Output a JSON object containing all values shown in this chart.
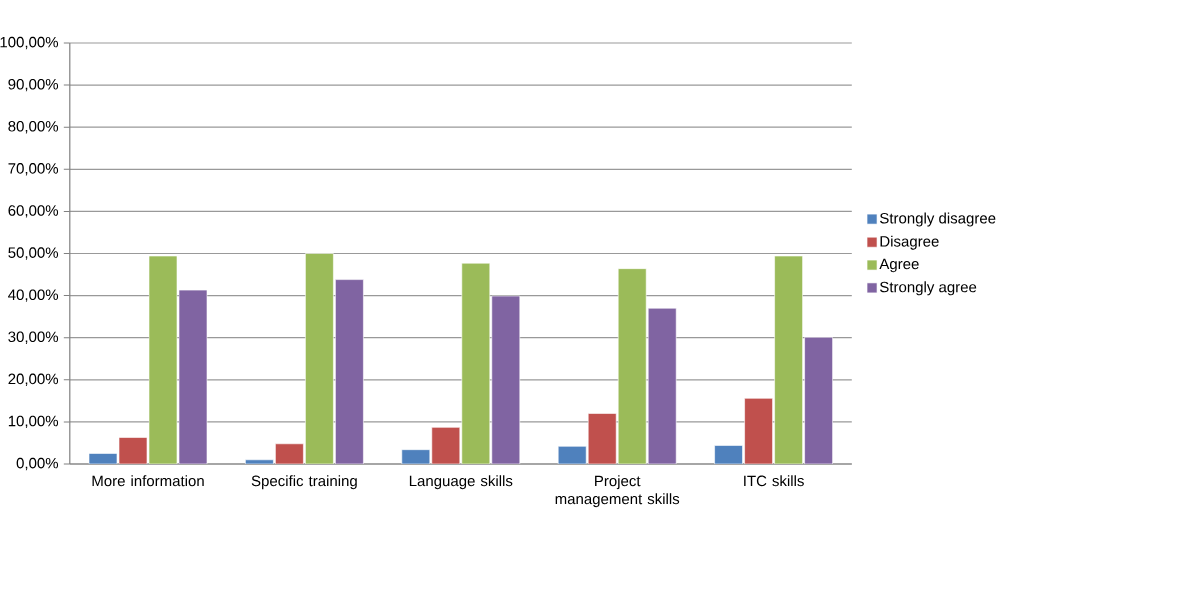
{
  "chart_data": {
    "type": "bar",
    "categories": [
      "More information",
      "Specific training",
      "Language skills",
      "Project management skills",
      "ITC skills"
    ],
    "series": [
      {
        "name": "Strongly disagree",
        "color": "#4f81bd",
        "values": [
          2.5,
          1.0,
          3.4,
          4.2,
          4.4
        ]
      },
      {
        "name": "Disagree",
        "color": "#c0504d",
        "values": [
          6.3,
          4.8,
          8.7,
          12.0,
          15.6
        ]
      },
      {
        "name": "Agree",
        "color": "#9bbb59",
        "values": [
          49.4,
          50.0,
          47.7,
          46.4,
          49.4
        ]
      },
      {
        "name": "Strongly agree",
        "color": "#8064a2",
        "values": [
          41.3,
          43.8,
          39.9,
          37.0,
          30.1
        ]
      }
    ],
    "ylim": [
      0,
      100
    ],
    "yticks": [
      {
        "value": 0,
        "label": "0,00%"
      },
      {
        "value": 10,
        "label": "10,00%"
      },
      {
        "value": 20,
        "label": "20,00%"
      },
      {
        "value": 30,
        "label": "30,00%"
      },
      {
        "value": 40,
        "label": "40,00%"
      },
      {
        "value": 50,
        "label": "50,00%"
      },
      {
        "value": 60,
        "label": "60,00%"
      },
      {
        "value": 70,
        "label": "70,00%"
      },
      {
        "value": 80,
        "label": "80,00%"
      },
      {
        "value": 90,
        "label": "90,00%"
      },
      {
        "value": 100,
        "label": "100,00%"
      }
    ],
    "grid": "y",
    "legend": "right"
  }
}
